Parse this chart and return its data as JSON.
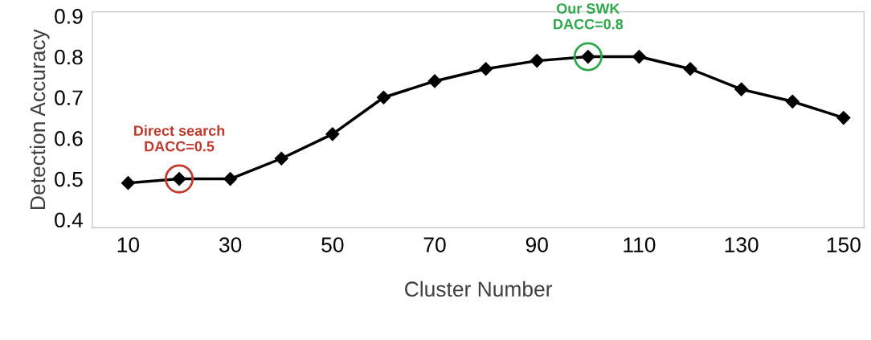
{
  "chart_data": {
    "type": "line",
    "xlabel": "Cluster Number",
    "ylabel": "Detection Accuracy",
    "x": [
      10,
      20,
      30,
      40,
      50,
      60,
      70,
      80,
      90,
      100,
      110,
      120,
      130,
      140,
      150
    ],
    "series": [
      {
        "color": "#000000",
        "values": [
          0.49,
          0.5,
          0.5,
          0.55,
          0.61,
          0.7,
          0.74,
          0.77,
          0.79,
          0.8,
          0.8,
          0.77,
          0.72,
          0.69,
          0.65
        ]
      }
    ],
    "marker": "diamond",
    "line_style": "solid",
    "grid": false,
    "legend": false,
    "xlim": [
      3,
      154
    ],
    "xticks": [
      10,
      30,
      50,
      70,
      90,
      110,
      130,
      150
    ],
    "ylim": [
      0.38,
      0.91
    ],
    "yticks": [
      0.4,
      0.5,
      0.6,
      0.7,
      0.8,
      0.9
    ],
    "annotations": [
      {
        "text": "Direct search\nDACC=0.5",
        "x": 20,
        "y": 0.5
      },
      {
        "text": "Our SWK\nDACC=0.8",
        "x": 100,
        "y": 0.8
      }
    ]
  }
}
